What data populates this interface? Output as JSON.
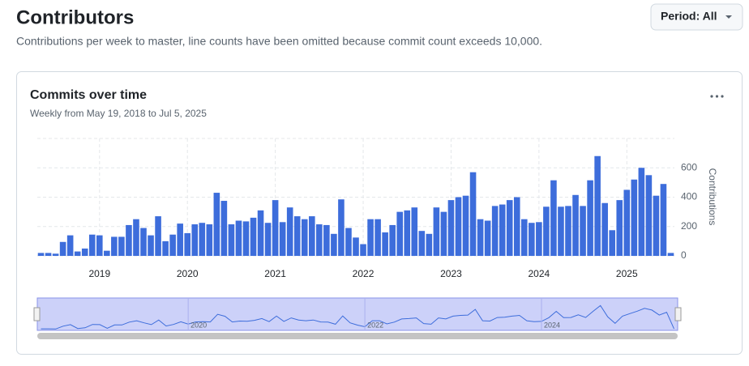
{
  "header": {
    "title": "Contributors",
    "subtitle": "Contributions per week to master, line counts have been omitted because commit count exceeds 10,000.",
    "period_button": "Period: All"
  },
  "chart_data": {
    "type": "bar",
    "title": "Commits over time",
    "subtitle": "Weekly from May 19, 2018 to Jul 5, 2025",
    "y_axis_label": "Contributions",
    "color": "#3d6ddb",
    "categories": [
      null,
      null,
      null,
      null,
      null,
      null,
      null,
      null,
      "2019",
      null,
      null,
      null,
      null,
      null,
      null,
      null,
      null,
      null,
      null,
      null,
      "2020",
      null,
      null,
      null,
      null,
      null,
      null,
      null,
      null,
      null,
      null,
      null,
      "2021",
      null,
      null,
      null,
      null,
      null,
      null,
      null,
      null,
      null,
      null,
      null,
      "2022",
      null,
      null,
      null,
      null,
      null,
      null,
      null,
      null,
      null,
      null,
      null,
      "2023",
      null,
      null,
      null,
      null,
      null,
      null,
      null,
      null,
      null,
      null,
      null,
      "2024",
      null,
      null,
      null,
      null,
      null,
      null,
      null,
      null,
      null,
      null,
      null,
      "2025",
      null,
      null,
      null,
      null,
      null,
      null
    ],
    "values": [
      20,
      20,
      15,
      95,
      140,
      30,
      50,
      145,
      140,
      35,
      130,
      130,
      210,
      250,
      190,
      140,
      270,
      100,
      145,
      220,
      155,
      215,
      225,
      215,
      430,
      375,
      215,
      240,
      235,
      260,
      310,
      225,
      380,
      230,
      330,
      270,
      250,
      270,
      215,
      210,
      150,
      385,
      190,
      125,
      80,
      250,
      250,
      160,
      210,
      300,
      310,
      330,
      170,
      150,
      330,
      300,
      380,
      400,
      410,
      570,
      250,
      240,
      340,
      350,
      380,
      400,
      250,
      225,
      230,
      335,
      515,
      335,
      340,
      415,
      340,
      515,
      680,
      360,
      175,
      380,
      450,
      520,
      600,
      550,
      410,
      490,
      20
    ],
    "ylim": [
      0,
      800
    ],
    "yticks": [
      0,
      200,
      400,
      600
    ],
    "grid": true,
    "navigator_labels": [
      "2020",
      "2022",
      "2024"
    ]
  }
}
